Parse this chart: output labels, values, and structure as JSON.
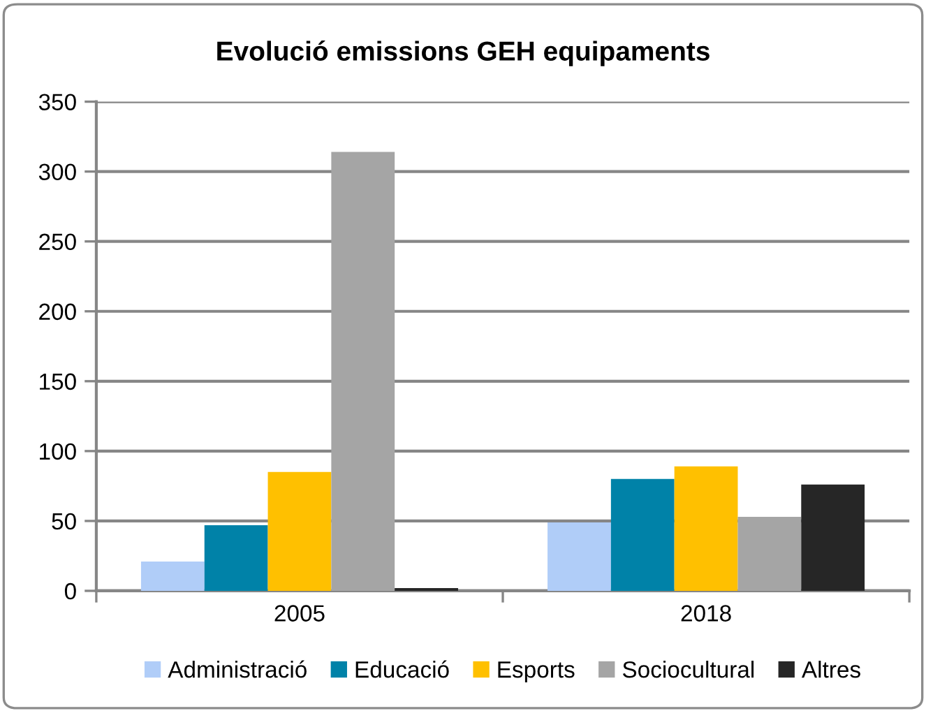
{
  "chart_data": {
    "type": "bar",
    "title": "Evolució emissions GEH equipaments",
    "categories": [
      "2005",
      "2018"
    ],
    "series": [
      {
        "name": "Administració",
        "color": "#b0cdf8",
        "values": [
          21,
          49
        ]
      },
      {
        "name": "Educació",
        "color": "#0082a8",
        "values": [
          47,
          80
        ]
      },
      {
        "name": "Esports",
        "color": "#ffc000",
        "values": [
          85,
          89
        ]
      },
      {
        "name": "Sociocultural",
        "color": "#a5a5a5",
        "values": [
          314,
          53
        ]
      },
      {
        "name": "Altres",
        "color": "#262626",
        "values": [
          2,
          76
        ]
      }
    ],
    "ylim": [
      0,
      350
    ],
    "yticks": [
      0,
      50,
      100,
      150,
      200,
      250,
      300,
      350
    ],
    "grid": "y",
    "legend": "bottom"
  }
}
